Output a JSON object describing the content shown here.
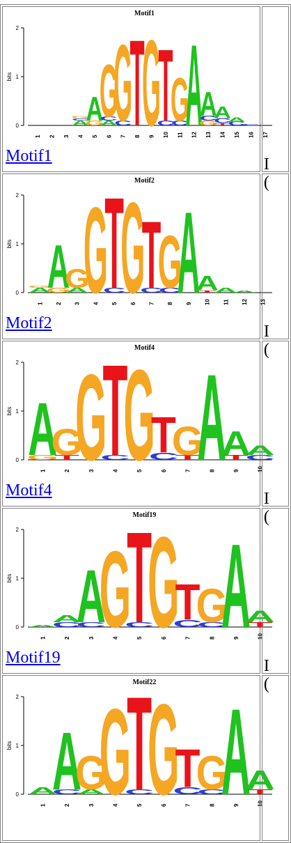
{
  "colors": {
    "A": "#1fc21f",
    "C": "#2d3ed8",
    "G": "#f5a623",
    "T": "#e8141a",
    "axis": "#000000",
    "link": "#0000ee"
  },
  "axis": {
    "ylabel": "bits",
    "yticks": [
      "0",
      "1",
      "2"
    ]
  },
  "motifs": [
    {
      "title": "Motif1",
      "link_label": "Motif1",
      "side_line1": "I",
      "side_line2": "(",
      "positions": [
        "1",
        "2",
        "3",
        "4",
        "5",
        "6",
        "7",
        "8",
        "9",
        "10",
        "11",
        "12",
        "13",
        "14",
        "15",
        "16",
        "17"
      ],
      "letters": [
        [],
        [],
        [],
        [
          [
            "A",
            0.1
          ],
          [
            "C",
            0.05
          ],
          [
            "G",
            0.05
          ]
        ],
        [
          [
            "G",
            0.1
          ],
          [
            "A",
            0.5
          ]
        ],
        [
          [
            "A",
            0.1
          ],
          [
            "C",
            0.08
          ],
          [
            "G",
            1.1
          ]
        ],
        [
          [
            "C",
            0.1
          ],
          [
            "G",
            1.6
          ]
        ],
        [
          [
            "T",
            1.8
          ]
        ],
        [
          [
            "G",
            1.8
          ]
        ],
        [
          [
            "C",
            0.1
          ],
          [
            "T",
            1.5
          ]
        ],
        [
          [
            "C",
            0.1
          ],
          [
            "G",
            0.9
          ]
        ],
        [
          [
            "A",
            1.7
          ]
        ],
        [
          [
            "G",
            0.1
          ],
          [
            "C",
            0.1
          ],
          [
            "A",
            0.5
          ]
        ],
        [
          [
            "T",
            0.05
          ],
          [
            "C",
            0.1
          ],
          [
            "A",
            0.25
          ]
        ],
        [
          [
            "C",
            0.08
          ],
          [
            "A",
            0.08
          ]
        ],
        [
          [
            "C",
            0.03
          ]
        ],
        []
      ]
    },
    {
      "title": "Motif2",
      "link_label": "Motif2",
      "side_line1": "I",
      "side_line2": "(",
      "positions": [
        "1",
        "2",
        "3",
        "4",
        "5",
        "6",
        "7",
        "8",
        "9",
        "10",
        "11",
        "12",
        "13"
      ],
      "letters": [
        [
          [
            "A",
            0.1
          ],
          [
            "G",
            0.05
          ]
        ],
        [
          [
            "G",
            0.1
          ],
          [
            "A",
            0.9
          ]
        ],
        [
          [
            "A",
            0.1
          ],
          [
            "G",
            0.4
          ]
        ],
        [
          [
            "G",
            1.8
          ]
        ],
        [
          [
            "C",
            0.1
          ],
          [
            "T",
            1.9
          ]
        ],
        [
          [
            "G",
            1.9
          ]
        ],
        [
          [
            "C",
            0.1
          ],
          [
            "T",
            1.4
          ]
        ],
        [
          [
            "C",
            0.1
          ],
          [
            "G",
            1.1
          ]
        ],
        [
          [
            "A",
            1.7
          ]
        ],
        [
          [
            "T",
            0.05
          ],
          [
            "A",
            0.3
          ]
        ],
        [
          [
            "A",
            0.1
          ]
        ],
        [
          [
            "A",
            0.05
          ]
        ],
        []
      ]
    },
    {
      "title": "Motif4",
      "link_label": "Motif4",
      "side_line1": "I",
      "side_line2": "(",
      "positions": [
        "1",
        "2",
        "3",
        "4",
        "5",
        "6",
        "7",
        "8",
        "9",
        "10"
      ],
      "letters": [
        [
          [
            "G",
            0.1
          ],
          [
            "A",
            1.1
          ]
        ],
        [
          [
            "T",
            0.1
          ],
          [
            "G",
            0.55
          ]
        ],
        [
          [
            "G",
            1.8
          ]
        ],
        [
          [
            "C",
            0.1
          ],
          [
            "T",
            1.9
          ]
        ],
        [
          [
            "G",
            1.9
          ]
        ],
        [
          [
            "C",
            0.15
          ],
          [
            "T",
            0.75
          ]
        ],
        [
          [
            "T",
            0.1
          ],
          [
            "G",
            0.6
          ]
        ],
        [
          [
            "A",
            1.8
          ]
        ],
        [
          [
            "T",
            0.1
          ],
          [
            "A",
            0.5
          ]
        ],
        [
          [
            "C",
            0.1
          ],
          [
            "A",
            0.2
          ]
        ]
      ]
    },
    {
      "title": "Motif19",
      "link_label": "Motif19",
      "side_line1": "I",
      "side_line2": "(",
      "positions": [
        "1",
        "2",
        "3",
        "4",
        "5",
        "6",
        "7",
        "8",
        "9",
        "10"
      ],
      "letters": [
        [
          [
            "A",
            0.05
          ]
        ],
        [
          [
            "C",
            0.1
          ],
          [
            "A",
            0.15
          ]
        ],
        [
          [
            "C",
            0.1
          ],
          [
            "A",
            1.1
          ]
        ],
        [
          [
            "G",
            1.6
          ]
        ],
        [
          [
            "C",
            0.1
          ],
          [
            "T",
            1.9
          ]
        ],
        [
          [
            "G",
            1.9
          ]
        ],
        [
          [
            "C",
            0.15
          ],
          [
            "T",
            0.75
          ]
        ],
        [
          [
            "C",
            0.1
          ],
          [
            "G",
            0.7
          ]
        ],
        [
          [
            "A",
            1.75
          ]
        ],
        [
          [
            "T",
            0.1
          ],
          [
            "A",
            0.25
          ]
        ]
      ]
    },
    {
      "title": "Motif22",
      "link_label": "",
      "side_line1": "",
      "side_line2": "",
      "positions": [
        "1",
        "2",
        "3",
        "4",
        "5",
        "6",
        "7",
        "8",
        "9",
        "10"
      ],
      "letters": [
        [
          [
            "A",
            0.15
          ]
        ],
        [
          [
            "C",
            0.1
          ],
          [
            "A",
            1.2
          ]
        ],
        [
          [
            "A",
            0.1
          ],
          [
            "G",
            0.7
          ]
        ],
        [
          [
            "G",
            1.8
          ]
        ],
        [
          [
            "C",
            0.1
          ],
          [
            "T",
            1.95
          ]
        ],
        [
          [
            "G",
            1.9
          ]
        ],
        [
          [
            "C",
            0.15
          ],
          [
            "T",
            0.8
          ]
        ],
        [
          [
            "C",
            0.1
          ],
          [
            "G",
            0.7
          ]
        ],
        [
          [
            "A",
            1.8
          ]
        ],
        [
          [
            "T",
            0.1
          ],
          [
            "A",
            0.4
          ]
        ]
      ]
    }
  ]
}
